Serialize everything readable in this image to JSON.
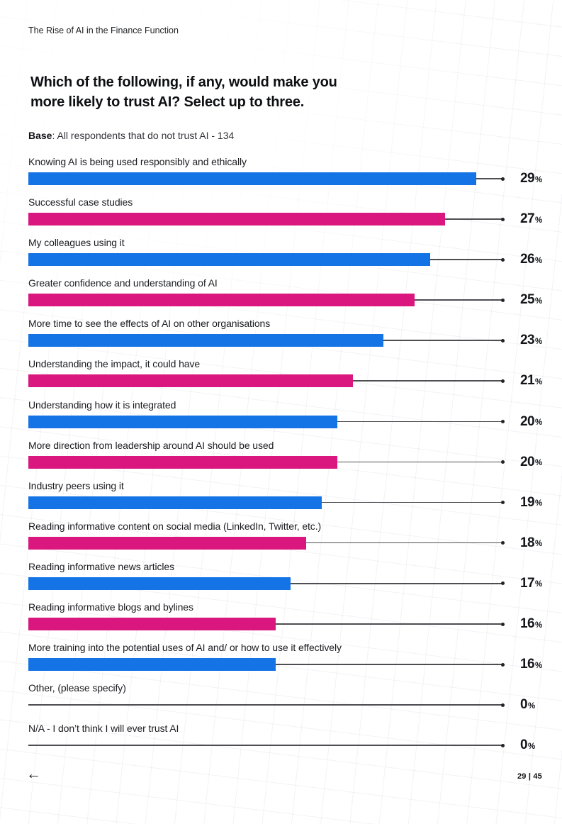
{
  "header": {
    "report_title": "The Rise of AI in the Finance Function"
  },
  "question": {
    "lines": [
      "Which of the following, if any, would make you",
      "more likely to trust AI? Select up to three."
    ]
  },
  "base": {
    "label": "Base",
    "text": ": All respondents that do not trust AI - 134"
  },
  "colors": {
    "blue": "#1474E6",
    "pink": "#D9177E",
    "connector_line": "#4d4e52",
    "dot": "#232428",
    "value_text": "#14161b"
  },
  "chart_data": {
    "type": "bar",
    "orientation": "horizontal",
    "title": "Which of the following, if any, would make you more likely to trust AI? Select up to three.",
    "unit": "%",
    "xlim": [
      0,
      29
    ],
    "grid": false,
    "categories": [
      "Knowing AI is being used responsibly and ethically",
      "Successful case studies",
      "My colleagues using it",
      "Greater confidence and understanding of AI",
      "More time to see the effects of AI on other organisations",
      "Understanding the impact, it could have",
      "Understanding how it is integrated",
      "More direction from leadership around AI should be used",
      "Industry peers using it",
      "Reading informative content on social media (LinkedIn, Twitter, etc.)",
      "Reading informative news articles",
      "Reading informative blogs and bylines",
      "More training into the potential uses of AI and/ or how to use it effectively",
      "Other, (please specify)",
      "N/A - I don’t think I will ever trust AI"
    ],
    "values": [
      29,
      27,
      26,
      25,
      23,
      21,
      20,
      20,
      19,
      18,
      17,
      16,
      16,
      0,
      0
    ],
    "value_labels": [
      "29%",
      "27%",
      "26%",
      "25%",
      "23%",
      "21%",
      "20%",
      "20%",
      "19%",
      "18%",
      "17%",
      "16%",
      "16%",
      "0%",
      "0%"
    ],
    "bar_color_keys": [
      "blue",
      "pink",
      "blue",
      "pink",
      "blue",
      "pink",
      "blue",
      "pink",
      "blue",
      "pink",
      "blue",
      "pink",
      "blue",
      "none",
      "none"
    ]
  },
  "footer": {
    "back_icon": "←",
    "page_number": "29 | 45"
  }
}
